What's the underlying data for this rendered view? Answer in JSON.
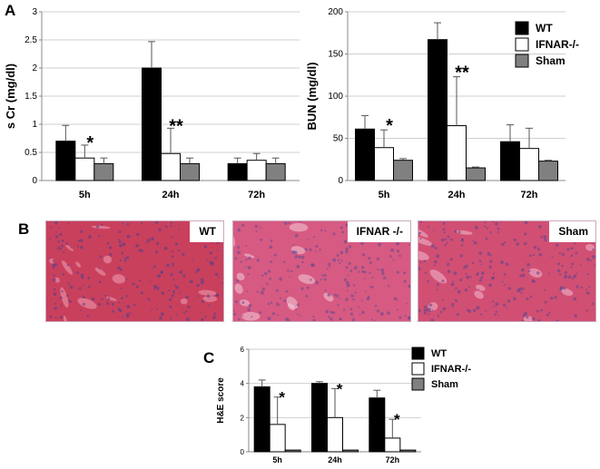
{
  "panels": {
    "A": "A",
    "B": "B",
    "C": "C"
  },
  "colors": {
    "WT": "#000000",
    "IFNAR-/-": "#ffffff",
    "Sham": "#808080"
  },
  "histology": [
    {
      "label": "WT",
      "tissue_base": "#c9405d",
      "vessel": "#ee9fb4",
      "nuclei": "#5a3f86"
    },
    {
      "label": "IFNAR -/-",
      "tissue_base": "#d65a82",
      "vessel": "#f6ccd9",
      "nuclei": "#6a4a8e"
    },
    {
      "label": "Sham",
      "tissue_base": "#d14f73",
      "vessel": "#f3bccf",
      "nuclei": "#64448a"
    }
  ],
  "chart_data": [
    {
      "type": "bar",
      "ylabel": "s Cr (mg/dl)",
      "categories": [
        "5h",
        "24h",
        "72h"
      ],
      "ylim": [
        0,
        3
      ],
      "yticks": [
        "0",
        "0.5",
        "1",
        "1.5",
        "2",
        "2.5",
        "3"
      ],
      "grid": true,
      "series": [
        {
          "name": "WT",
          "values": [
            0.7,
            2.0,
            0.3
          ],
          "errors": [
            0.28,
            0.47,
            0.1
          ]
        },
        {
          "name": "IFNAR-/-",
          "values": [
            0.4,
            0.48,
            0.36
          ],
          "errors": [
            0.23,
            0.45,
            0.12
          ]
        },
        {
          "name": "Sham",
          "values": [
            0.3,
            0.3,
            0.3
          ],
          "errors": [
            0.1,
            0.1,
            0.1
          ]
        }
      ],
      "annotations": [
        {
          "category": "5h",
          "series": "IFNAR-/-",
          "text": "*"
        },
        {
          "category": "24h",
          "series": "IFNAR-/-",
          "text": "**"
        }
      ]
    },
    {
      "type": "bar",
      "ylabel": "BUN (mg/dl)",
      "categories": [
        "5h",
        "24h",
        "72h"
      ],
      "ylim": [
        0,
        200
      ],
      "yticks": [
        "0",
        "50",
        "100",
        "150",
        "200"
      ],
      "grid": true,
      "legend": "top-right",
      "series": [
        {
          "name": "WT",
          "values": [
            61,
            167,
            46
          ],
          "errors": [
            16,
            20,
            20
          ]
        },
        {
          "name": "IFNAR-/-",
          "values": [
            39,
            65,
            38
          ],
          "errors": [
            21,
            58,
            24
          ]
        },
        {
          "name": "Sham",
          "values": [
            24,
            15,
            23
          ],
          "errors": [
            2,
            1,
            1
          ]
        }
      ],
      "annotations": [
        {
          "category": "5h",
          "series": "IFNAR-/-",
          "text": "*"
        },
        {
          "category": "24h",
          "series": "IFNAR-/-",
          "text": "**"
        }
      ]
    },
    {
      "type": "bar",
      "ylabel": "H&E score",
      "categories": [
        "5h",
        "24h",
        "72h"
      ],
      "ylim": [
        0,
        6
      ],
      "yticks": [
        "0",
        "2",
        "4",
        "6"
      ],
      "grid": true,
      "legend": "top-right",
      "series": [
        {
          "name": "WT",
          "values": [
            3.8,
            4.0,
            3.15
          ],
          "errors": [
            0.4,
            0.1,
            0.45
          ]
        },
        {
          "name": "IFNAR-/-",
          "values": [
            1.6,
            2.0,
            0.8
          ],
          "errors": [
            1.6,
            1.7,
            1.1
          ]
        },
        {
          "name": "Sham",
          "values": [
            0.1,
            0.1,
            0.1
          ],
          "errors": [
            0,
            0,
            0
          ]
        }
      ],
      "annotations": [
        {
          "category": "5h",
          "series": "IFNAR-/-",
          "text": "*"
        },
        {
          "category": "24h",
          "series": "IFNAR-/-",
          "text": "*"
        },
        {
          "category": "72h",
          "series": "IFNAR-/-",
          "text": "*"
        }
      ]
    }
  ]
}
